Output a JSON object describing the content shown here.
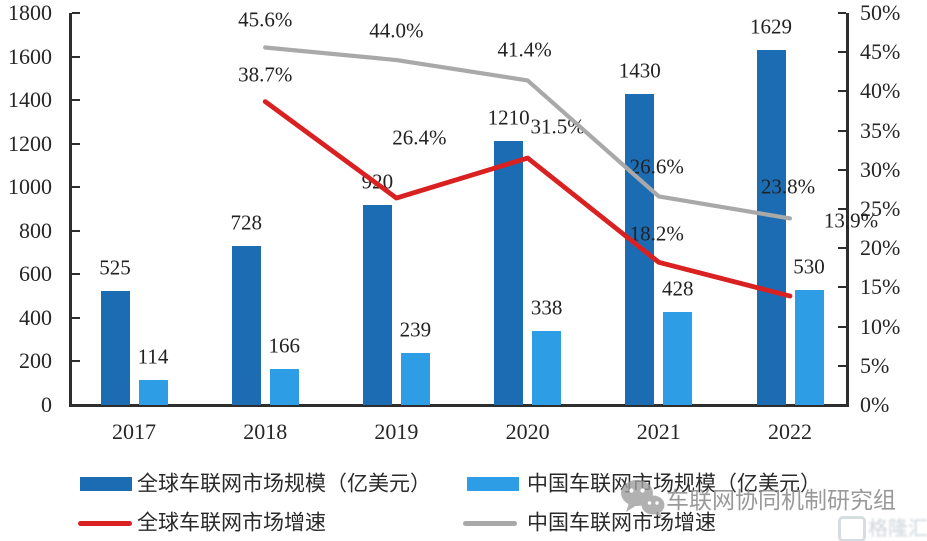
{
  "chart_data": {
    "type": "combo-bar-line",
    "categories": [
      "2017",
      "2018",
      "2019",
      "2020",
      "2021",
      "2022"
    ],
    "bar_series": [
      {
        "name": "全球车联网市场规模（亿美元）",
        "color": "#1b6cb3",
        "values": [
          525,
          728,
          920,
          1210,
          1430,
          1629
        ]
      },
      {
        "name": "中国车联网市场规模（亿美元）",
        "color": "#2d9de5",
        "values": [
          114,
          166,
          239,
          338,
          428,
          530
        ]
      }
    ],
    "line_series": [
      {
        "name": "全球车联网市场增速",
        "color": "#d92121",
        "categories": [
          "2018",
          "2019",
          "2020",
          "2021",
          "2022"
        ],
        "values": [
          38.7,
          26.4,
          31.5,
          18.2,
          13.9
        ]
      },
      {
        "name": "中国车联网市场增速",
        "color": "#a9a9a9",
        "categories": [
          "2018",
          "2019",
          "2020",
          "2021",
          "2022"
        ],
        "values": [
          45.6,
          44.0,
          41.4,
          26.6,
          23.8
        ]
      }
    ],
    "left_axis": {
      "min": 0,
      "max": 1800,
      "step": 200
    },
    "right_axis": {
      "min": 0,
      "max": 50,
      "step": 5,
      "unit": "%"
    },
    "grid": false,
    "legend_position": "bottom"
  },
  "watermark": {
    "text": "车联网协同机制研究组",
    "logo_text": "格隆汇"
  }
}
